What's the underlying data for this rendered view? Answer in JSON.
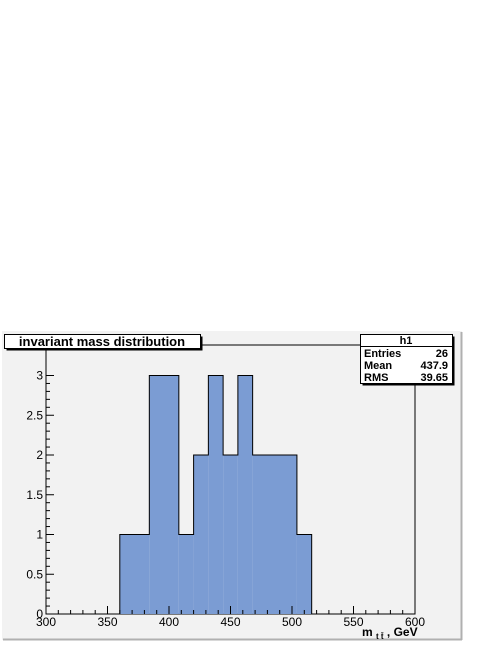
{
  "chart_data": {
    "type": "histogram",
    "title": "invariant mass distribution",
    "x_axis_label": "m",
    "x_axis_label_subscript": "t t̄",
    "x_axis_label_suffix": ", GeV",
    "xlim": [
      300,
      600
    ],
    "ylim": [
      0,
      3.0
    ],
    "x_ticks": [
      "300",
      "350",
      "400",
      "450",
      "500",
      "550",
      "600"
    ],
    "y_ticks": [
      "0",
      "0.5",
      "1",
      "1.5",
      "2",
      "2.5",
      "3"
    ],
    "bins": [
      {
        "x0": 360,
        "x1": 384,
        "y": 1
      },
      {
        "x0": 384,
        "x1": 408,
        "y": 3
      },
      {
        "x0": 408,
        "x1": 420,
        "y": 1
      },
      {
        "x0": 420,
        "x1": 432,
        "y": 2
      },
      {
        "x0": 432,
        "x1": 444,
        "y": 3
      },
      {
        "x0": 444,
        "x1": 456,
        "y": 2
      },
      {
        "x0": 456,
        "x1": 468,
        "y": 3
      },
      {
        "x0": 468,
        "x1": 504,
        "y": 2
      },
      {
        "x0": 504,
        "x1": 516,
        "y": 1
      }
    ],
    "fill_color": "#7b9cd3",
    "stats_box": {
      "name": "h1",
      "rows": [
        {
          "label": "Entries",
          "value": "26"
        },
        {
          "label": "Mean",
          "value": "437.9"
        },
        {
          "label": "RMS",
          "value": "39.65"
        }
      ]
    }
  }
}
